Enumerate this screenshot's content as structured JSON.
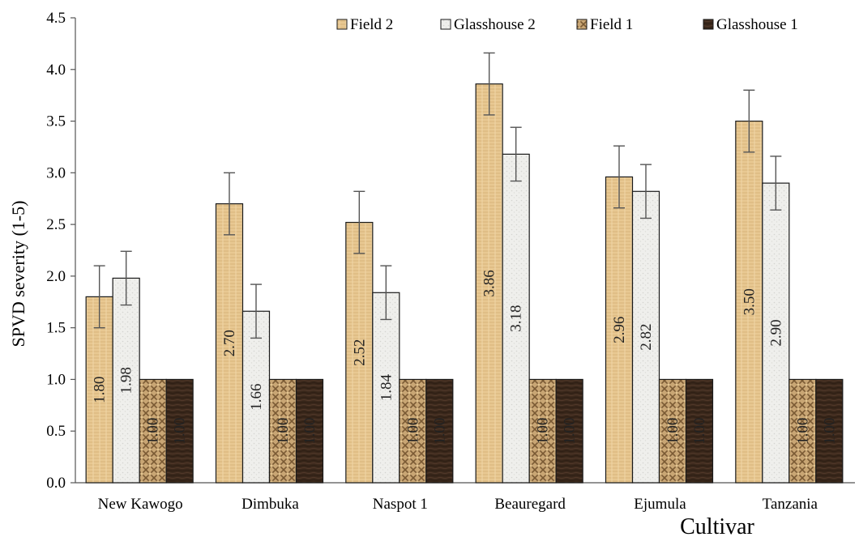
{
  "chart_data": {
    "type": "bar",
    "title": "",
    "xlabel": "Cultivar",
    "ylabel": "SPVD severity (1-5)",
    "ylim": [
      0,
      4.5
    ],
    "yticks": [
      "0.0",
      "0.5",
      "1.0",
      "1.5",
      "2.0",
      "2.5",
      "3.0",
      "3.5",
      "4.0",
      "4.5"
    ],
    "grid": false,
    "legend_position": "top-right",
    "categories": [
      "New Kawogo",
      "Dimbuka",
      "Naspot 1",
      "Beauregard",
      "Ejumula",
      "Tanzania"
    ],
    "series": [
      {
        "name": "Field 2",
        "color": "#e6c48e",
        "values": [
          1.8,
          2.7,
          2.52,
          3.86,
          2.96,
          3.5
        ],
        "errors": [
          0.3,
          0.3,
          0.3,
          0.3,
          0.3,
          0.3
        ],
        "labels": [
          "1.80",
          "2.70",
          "2.52",
          "3.86",
          "2.96",
          "3.50"
        ]
      },
      {
        "name": "Glasshouse 2",
        "color": "#ededea",
        "values": [
          1.98,
          1.66,
          1.84,
          3.18,
          2.82,
          2.9
        ],
        "errors": [
          0.26,
          0.26,
          0.26,
          0.26,
          0.26,
          0.26
        ],
        "labels": [
          "1.98",
          "1.66",
          "1.84",
          "3.18",
          "2.82",
          "2.90"
        ]
      },
      {
        "name": "Field 1",
        "color": "#b8976a",
        "values": [
          1.0,
          1.0,
          1.0,
          1.0,
          1.0,
          1.0
        ],
        "labels": [
          "1.00",
          "1.00",
          "1.00",
          "1.00",
          "1.00",
          "1.00"
        ]
      },
      {
        "name": "Glasshouse 1",
        "color": "#3b2a1e",
        "values": [
          1.0,
          1.0,
          1.0,
          1.0,
          1.0,
          1.0
        ],
        "labels": [
          "1.00",
          "1.00",
          "1.00",
          "1.00",
          "1.00",
          "1.00"
        ]
      }
    ]
  }
}
